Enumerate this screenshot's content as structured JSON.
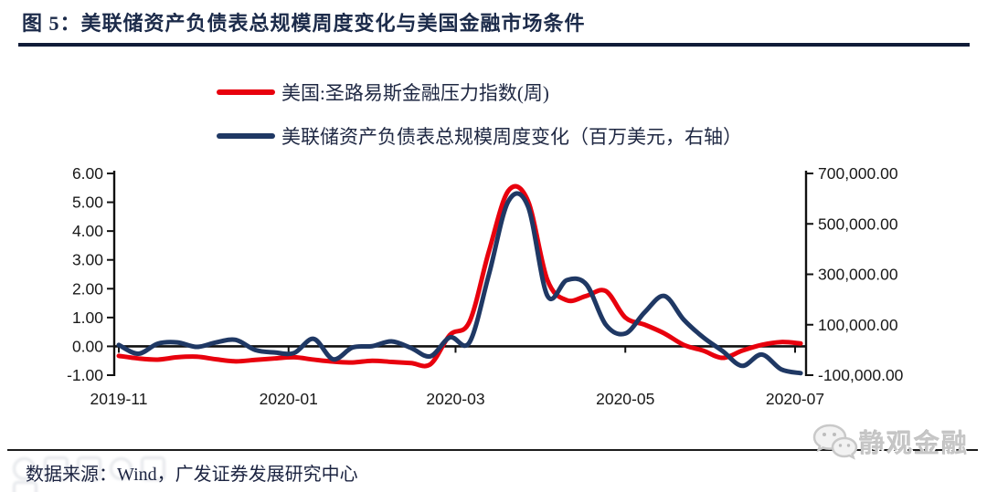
{
  "figure": {
    "title": "图 5：美联储资产负债表总规模周度变化与美国金融市场条件",
    "source": "数据来源：Wind，广发证券发展研究中心",
    "watermark_right": "静观金融"
  },
  "colors": {
    "title_navy": "#1c2b4a",
    "rule_dark": "#101c38",
    "red_line": "#e8000d",
    "navy_line": "#1f3864",
    "axis_black": "#111111",
    "watermark_gray": "#c6c6c6"
  },
  "chart_data": {
    "type": "line",
    "title": "美联储资产负债表总规模周度变化与美国金融市场条件",
    "grid": false,
    "legend_position": "top-left",
    "smoothed": true,
    "x_tick_labels": [
      {
        "date": "2019-11-01",
        "label": "2019-11"
      },
      {
        "date": "2020-01-01",
        "label": "2020-01"
      },
      {
        "date": "2020-03-01",
        "label": "2020-03"
      },
      {
        "date": "2020-05-01",
        "label": "2020-05"
      },
      {
        "date": "2020-07-01",
        "label": "2020-07"
      }
    ],
    "left_axis": {
      "range": [
        -1,
        6
      ],
      "tick_values": [
        6,
        5,
        4,
        3,
        2,
        1,
        0,
        -1
      ],
      "tick_labels": [
        "6.00",
        "5.00",
        "4.00",
        "3.00",
        "2.00",
        "1.00",
        "0.00",
        "-1.00"
      ]
    },
    "right_axis": {
      "range": [
        -100000,
        700000
      ],
      "tick_values": [
        700000,
        500000,
        300000,
        100000,
        -100000
      ],
      "tick_labels": [
        "700,000.00",
        "500,000.00",
        "300,000.00",
        "100,000.00",
        "-100,000.00"
      ]
    },
    "dates": [
      "2019-11-01",
      "2019-11-08",
      "2019-11-15",
      "2019-11-22",
      "2019-11-29",
      "2019-12-06",
      "2019-12-13",
      "2019-12-20",
      "2019-12-27",
      "2020-01-03",
      "2020-01-10",
      "2020-01-17",
      "2020-01-24",
      "2020-01-31",
      "2020-02-07",
      "2020-02-14",
      "2020-02-21",
      "2020-02-28",
      "2020-03-06",
      "2020-03-13",
      "2020-03-20",
      "2020-03-27",
      "2020-04-03",
      "2020-04-10",
      "2020-04-17",
      "2020-04-24",
      "2020-05-01",
      "2020-05-08",
      "2020-05-15",
      "2020-05-22",
      "2020-05-29",
      "2020-06-05",
      "2020-06-12",
      "2020-06-19",
      "2020-06-26",
      "2020-07-03"
    ],
    "series": [
      {
        "name": "美国:圣路易斯金融压力指数(周)",
        "axis": "left",
        "color": "#e8000d",
        "values": [
          -0.33,
          -0.42,
          -0.46,
          -0.38,
          -0.36,
          -0.45,
          -0.52,
          -0.47,
          -0.42,
          -0.38,
          -0.46,
          -0.53,
          -0.56,
          -0.5,
          -0.54,
          -0.58,
          -0.62,
          0.4,
          0.85,
          3.3,
          5.4,
          5.05,
          2.3,
          1.6,
          1.75,
          1.92,
          1.0,
          0.75,
          0.45,
          0.05,
          -0.15,
          -0.4,
          -0.15,
          0.05,
          0.15,
          0.1
        ]
      },
      {
        "name": "美联储资产负债表总规模周度变化（百万美元，右轴）",
        "axis": "right",
        "color": "#1f3864",
        "values": [
          20000,
          -15000,
          25000,
          30000,
          12000,
          30000,
          40000,
          0,
          -10000,
          -12000,
          44000,
          -37000,
          10000,
          15000,
          34000,
          8000,
          -25000,
          50000,
          30000,
          300000,
          590000,
          570000,
          215000,
          277000,
          260000,
          100000,
          65000,
          150000,
          214000,
          120000,
          50000,
          -5000,
          -63000,
          -18000,
          -77000,
          -92000
        ]
      }
    ]
  }
}
